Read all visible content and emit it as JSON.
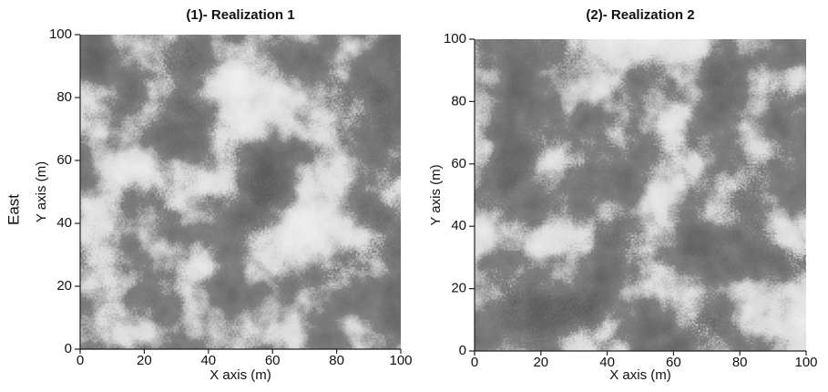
{
  "chart_data": [
    {
      "type": "heatmap",
      "title": "(1)- Realization 1",
      "xlabel": "X axis (m)",
      "ylabel": "Y axis (m)",
      "annotation": "East",
      "xlim": [
        0,
        100
      ],
      "ylim": [
        0,
        100
      ],
      "xticks": [
        0,
        20,
        40,
        60,
        80,
        100
      ],
      "yticks": [
        0,
        20,
        40,
        60,
        80,
        100
      ]
    },
    {
      "type": "heatmap",
      "title": "(2)- Realization 2",
      "xlabel": "X axis (m)",
      "ylabel": "Y axis (m)",
      "xlim": [
        0,
        100
      ],
      "ylim": [
        0,
        100
      ],
      "xticks": [
        0,
        20,
        40,
        60,
        80,
        100
      ],
      "yticks": [
        0,
        20,
        40,
        60,
        80,
        100
      ]
    }
  ]
}
